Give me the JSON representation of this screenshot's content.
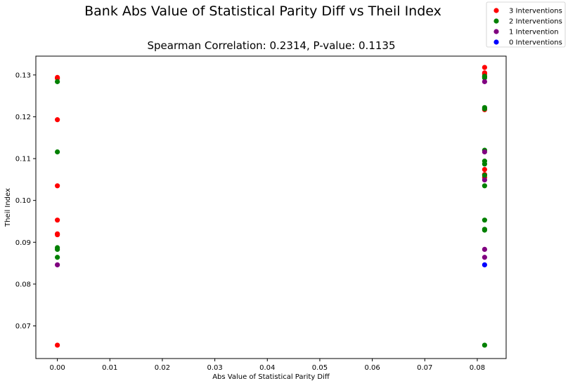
{
  "chart_data": {
    "type": "scatter",
    "suptitle": "Bank Abs Value of Statistical Parity Diff vs Theil Index",
    "title": "Spearman Correlation: 0.2314, P-value: 0.1135",
    "xlabel": "Abs Value of Statistical Parity Diff",
    "ylabel": "Theil Index",
    "xlim": [
      -0.0041,
      0.0855
    ],
    "ylim": [
      0.0622,
      0.1345
    ],
    "xticks": [
      0.0,
      0.01,
      0.02,
      0.03,
      0.04,
      0.05,
      0.06,
      0.07,
      0.08
    ],
    "xtick_labels": [
      "0.00",
      "0.01",
      "0.02",
      "0.03",
      "0.04",
      "0.05",
      "0.06",
      "0.07",
      "0.08"
    ],
    "yticks": [
      0.07,
      0.08,
      0.09,
      0.1,
      0.11,
      0.12,
      0.13
    ],
    "ytick_labels": [
      "0.07",
      "0.08",
      "0.09",
      "0.10",
      "0.11",
      "0.12",
      "0.13"
    ],
    "grid": false,
    "legend_position": "top-right (outside axes)",
    "series": [
      {
        "name": "3 Interventions",
        "color": "#ff0000",
        "x": [
          0.0,
          0.0,
          0.0,
          0.0,
          0.0,
          0.0,
          0.0,
          0.0,
          0.0814,
          0.0814,
          0.0814,
          0.0814,
          0.0814,
          0.0814,
          0.0814,
          0.0814
        ],
        "y": [
          0.1294,
          0.1292,
          0.1193,
          0.1035,
          0.0953,
          0.092,
          0.0918,
          0.0654,
          0.1318,
          0.1305,
          0.1302,
          0.1295,
          0.1217,
          0.1074,
          0.1062,
          0.1055
        ]
      },
      {
        "name": "2 Interventions",
        "color": "#008000",
        "x": [
          0.0,
          0.0,
          0.0,
          0.0,
          0.0,
          0.0814,
          0.0814,
          0.0814,
          0.0814,
          0.0814,
          0.0814,
          0.0814,
          0.0814,
          0.0814,
          0.0814,
          0.0814,
          0.0814,
          0.0814
        ],
        "y": [
          0.1284,
          0.1116,
          0.0887,
          0.0883,
          0.0864,
          0.1297,
          0.1293,
          0.1222,
          0.1219,
          0.112,
          0.1094,
          0.1087,
          0.106,
          0.1035,
          0.0953,
          0.0931,
          0.0929,
          0.0654
        ]
      },
      {
        "name": "1 Intervention",
        "color": "#800080",
        "x": [
          0.0,
          0.0814,
          0.0814,
          0.0814,
          0.0814,
          0.0814
        ],
        "y": [
          0.0846,
          0.1284,
          0.1116,
          0.1049,
          0.0883,
          0.0864
        ]
      },
      {
        "name": "0 Interventions",
        "color": "#0000ff",
        "x": [
          0.0814
        ],
        "y": [
          0.0846
        ]
      }
    ]
  }
}
